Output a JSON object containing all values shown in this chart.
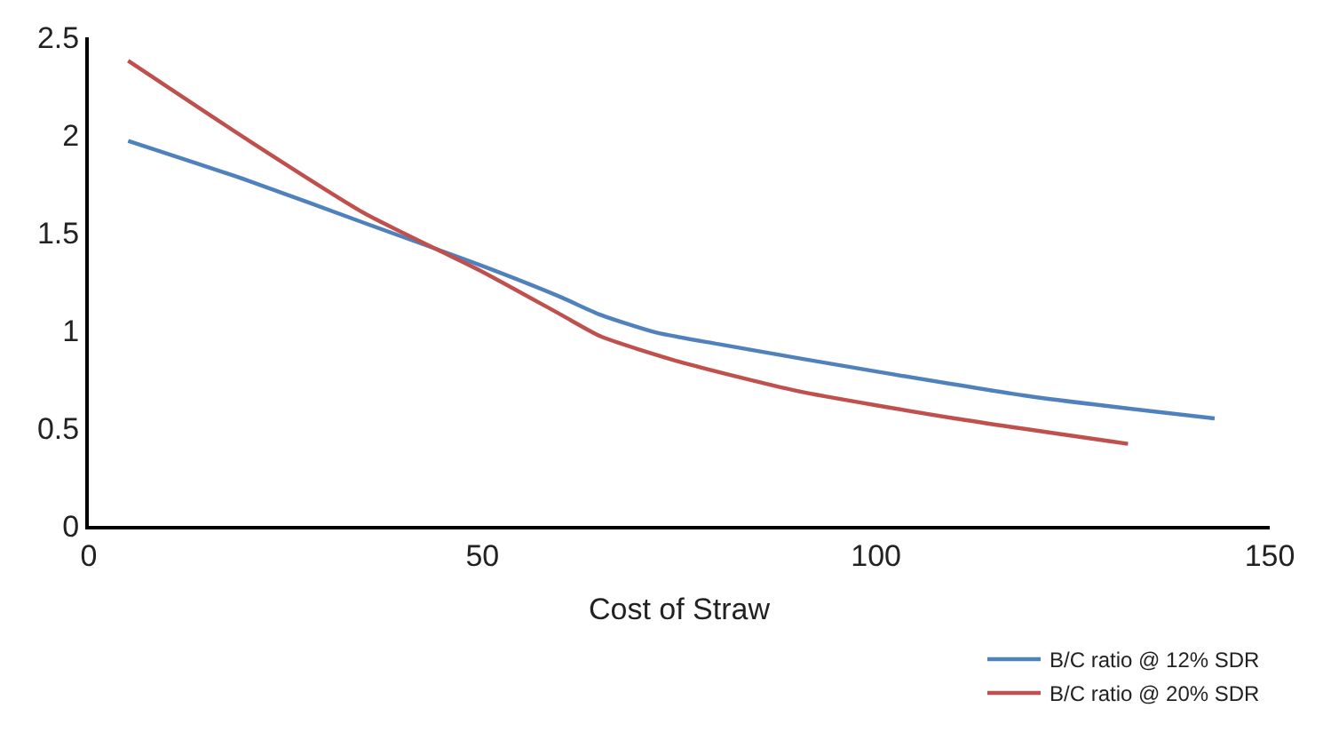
{
  "chart_data": {
    "type": "line",
    "xlabel": "Cost of Straw",
    "xlim": [
      0,
      150
    ],
    "xticks": [
      0,
      50,
      100,
      150
    ],
    "ylim": [
      0,
      2.5
    ],
    "yticks": [
      0,
      0.5,
      1,
      1.5,
      2,
      2.5
    ],
    "legend": "bottom right",
    "marker": "none",
    "line_style": "solid",
    "series": [
      {
        "name": "B/C ratio @ 12% SDR",
        "color": "#4f81bd",
        "x": [
          5,
          20,
          35,
          50,
          60,
          65,
          72,
          80,
          100,
          120,
          143
        ],
        "values": [
          1.97,
          1.77,
          1.55,
          1.33,
          1.17,
          1.08,
          0.99,
          0.93,
          0.79,
          0.66,
          0.55
        ]
      },
      {
        "name": "B/C ratio @ 20% SDR",
        "color": "#c0504d",
        "x": [
          5,
          20,
          35,
          50,
          60,
          65,
          75,
          90,
          110,
          132
        ],
        "values": [
          2.38,
          1.98,
          1.6,
          1.3,
          1.08,
          0.97,
          0.84,
          0.69,
          0.55,
          0.42
        ]
      }
    ]
  }
}
